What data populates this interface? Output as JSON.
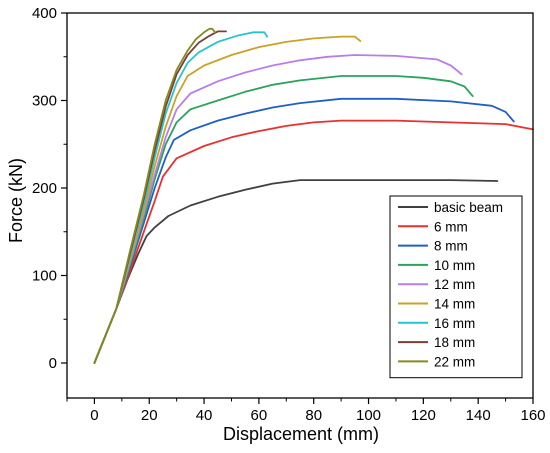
{
  "chart_data": {
    "type": "line",
    "xlabel": "Displacement (mm)",
    "ylabel": "Force (kN)",
    "xlim": [
      -10,
      160
    ],
    "ylim": [
      -40,
      400
    ],
    "xticks": [
      "0",
      "20",
      "40",
      "60",
      "80",
      "100",
      "120",
      "140",
      "160"
    ],
    "yticks": [
      "0",
      "100",
      "200",
      "300",
      "400"
    ],
    "grid": false,
    "legend_position": "bottom-right",
    "series": [
      {
        "name": "basic beam",
        "color": "#404040",
        "x": [
          0,
          8,
          12,
          16,
          19,
          22,
          27,
          35,
          45,
          55,
          65,
          75,
          90,
          110,
          130,
          147
        ],
        "y": [
          0,
          62,
          95,
          125,
          145,
          155,
          168,
          180,
          190,
          198,
          205,
          209,
          209,
          209,
          209,
          208
        ]
      },
      {
        "name": "6 mm",
        "color": "#e8312f",
        "x": [
          0,
          8,
          13,
          18,
          22,
          25,
          30,
          40,
          50,
          60,
          70,
          80,
          90,
          110,
          130,
          150,
          160
        ],
        "y": [
          0,
          62,
          105,
          150,
          185,
          213,
          234,
          248,
          258,
          265,
          271,
          275,
          277,
          277,
          275,
          273,
          267
        ]
      },
      {
        "name": "8 mm",
        "color": "#1f5fc7",
        "x": [
          0,
          8,
          13,
          18,
          22,
          26,
          29,
          35,
          45,
          55,
          65,
          75,
          90,
          110,
          130,
          145,
          150,
          153
        ],
        "y": [
          0,
          62,
          110,
          160,
          200,
          235,
          255,
          266,
          277,
          285,
          292,
          297,
          302,
          302,
          299,
          294,
          287,
          276
        ]
      },
      {
        "name": "10 mm",
        "color": "#2aa35c",
        "x": [
          0,
          8,
          13,
          18,
          22,
          26,
          30,
          35,
          45,
          55,
          65,
          75,
          90,
          110,
          120,
          130,
          135,
          138
        ],
        "y": [
          0,
          62,
          112,
          165,
          210,
          250,
          275,
          290,
          300,
          310,
          318,
          323,
          328,
          328,
          326,
          322,
          316,
          305
        ]
      },
      {
        "name": "12 mm",
        "color": "#b77fe5",
        "x": [
          0,
          8,
          13,
          18,
          22,
          26,
          30,
          35,
          45,
          55,
          65,
          75,
          85,
          95,
          110,
          125,
          130,
          134
        ],
        "y": [
          0,
          62,
          115,
          170,
          215,
          258,
          290,
          308,
          322,
          332,
          340,
          346,
          350,
          352,
          351,
          347,
          340,
          330
        ]
      },
      {
        "name": "14 mm",
        "color": "#c9a227",
        "x": [
          0,
          8,
          13,
          18,
          22,
          26,
          30,
          34,
          40,
          50,
          60,
          70,
          80,
          90,
          95,
          97
        ],
        "y": [
          0,
          62,
          118,
          175,
          225,
          270,
          305,
          328,
          340,
          352,
          361,
          367,
          371,
          373,
          373,
          368
        ]
      },
      {
        "name": "16 mm",
        "color": "#28c3cd",
        "x": [
          0,
          8,
          13,
          18,
          22,
          26,
          30,
          34,
          38,
          45,
          52,
          58,
          62,
          63
        ],
        "y": [
          0,
          62,
          122,
          182,
          235,
          285,
          320,
          343,
          355,
          367,
          374,
          378,
          378,
          373
        ]
      },
      {
        "name": "18 mm",
        "color": "#7b3f3a",
        "x": [
          0,
          8,
          13,
          18,
          22,
          26,
          30,
          34,
          38,
          42,
          45,
          48
        ],
        "y": [
          0,
          62,
          125,
          188,
          243,
          293,
          330,
          352,
          366,
          374,
          379,
          379
        ]
      },
      {
        "name": "22 mm",
        "color": "#858a1c",
        "x": [
          0,
          8,
          13,
          18,
          22,
          26,
          30,
          34,
          37,
          40,
          42,
          43,
          44
        ],
        "y": [
          0,
          62,
          128,
          192,
          250,
          300,
          335,
          357,
          370,
          378,
          382,
          382,
          378
        ]
      }
    ]
  }
}
